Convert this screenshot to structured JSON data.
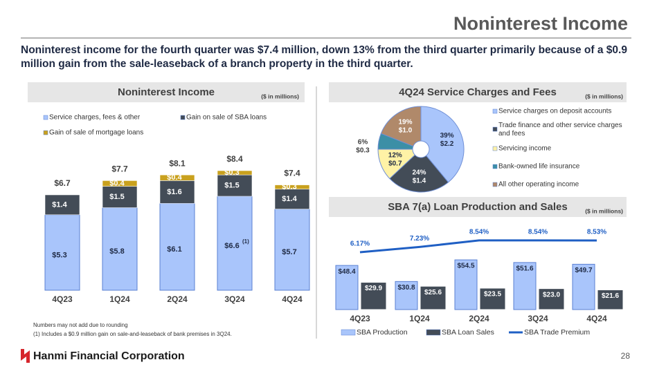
{
  "title": "Noninterest Income",
  "subtitle": "Noninterest income for the fourth quarter was $7.4 million, down 13% from the third quarter primarily because of a $0.9 million gain from the sale-leaseback of a branch property in the third quarter.",
  "footnotes": [
    "Numbers may not add due to rounding",
    "(1)   Includes a $0.9 million gain on sale-and-leaseback of bank premises in 3Q24."
  ],
  "logo": "Hanmi Financial Corporation",
  "page": "28",
  "chart_data": [
    {
      "type": "bar",
      "stacked": true,
      "title": "Noninterest Income",
      "unit": "($ in millions)",
      "categories": [
        "4Q23",
        "1Q24",
        "2Q24",
        "3Q24",
        "4Q24"
      ],
      "series": [
        {
          "name": "Service charges, fees & other",
          "color": "#a9c5fb",
          "values": [
            5.3,
            5.8,
            6.1,
            6.6,
            5.7
          ],
          "value_labels": [
            "$5.3",
            "$5.8",
            "$6.1",
            "$6.6",
            "$5.7"
          ]
        },
        {
          "name": "Gain on sale of SBA loans",
          "color": "#434c57",
          "values": [
            1.4,
            1.5,
            1.6,
            1.5,
            1.4
          ],
          "value_labels": [
            "$1.4",
            "$1.5",
            "$1.6",
            "$1.5",
            "$1.4"
          ]
        },
        {
          "name": "Gain of sale of mortgage loans",
          "color": "#c9a11e",
          "values": [
            null,
            0.4,
            0.4,
            0.3,
            0.3
          ],
          "value_labels": [
            null,
            "$0.4",
            "$0.4",
            "$0.3",
            "$0.3"
          ]
        }
      ],
      "totals": [
        6.7,
        7.7,
        8.1,
        8.4,
        7.4
      ],
      "total_labels": [
        "$6.7",
        "$7.7",
        "$8.1",
        "$8.4",
        "$7.4"
      ],
      "annotation": "(1)"
    },
    {
      "type": "pie",
      "title": "4Q24 Service Charges and Fees",
      "unit": "($ in millions)",
      "categories": [
        "Service charges on deposit accounts",
        "Trade finance and other service charges and fees",
        "Servicing income",
        "Bank-owned life insurance",
        "All other operating income"
      ],
      "values": [
        39,
        24,
        12,
        6,
        19
      ],
      "value_labels": [
        "39%",
        "24%",
        "12%",
        "6%",
        "19%"
      ],
      "amounts": [
        2.2,
        1.4,
        0.7,
        0.3,
        1.0
      ],
      "amount_labels": [
        "$2.2",
        "$1.4",
        "$0.7",
        "$0.3",
        "$1.0"
      ],
      "colors": [
        "#a9c5fb",
        "#434c57",
        "#fff2a6",
        "#3c8fa6",
        "#b0896a"
      ]
    },
    {
      "type": "bar",
      "title": "SBA 7(a) Loan Production and Sales",
      "unit": "($ in millions)",
      "categories": [
        "4Q23",
        "1Q24",
        "2Q24",
        "3Q24",
        "4Q24"
      ],
      "series": [
        {
          "name": "SBA Production",
          "color": "#a9c5fb",
          "values": [
            48.4,
            30.8,
            54.5,
            51.6,
            49.7
          ],
          "value_labels": [
            "$48.4",
            "$30.8",
            "$54.5",
            "$51.6",
            "$49.7"
          ]
        },
        {
          "name": "SBA Loan Sales",
          "color": "#434c57",
          "values": [
            29.9,
            25.6,
            23.5,
            23.0,
            21.6
          ],
          "value_labels": [
            "$29.9",
            "$25.6",
            "$23.5",
            "$23.0",
            "$21.6"
          ]
        },
        {
          "name": "SBA Trade Premium",
          "type": "line",
          "axis": "y2",
          "color": "#1f5fc4",
          "values": [
            6.17,
            7.23,
            8.54,
            8.54,
            8.53
          ],
          "value_labels": [
            "6.17%",
            "7.23%",
            "8.54%",
            "8.54%",
            "8.53%"
          ]
        }
      ]
    }
  ]
}
